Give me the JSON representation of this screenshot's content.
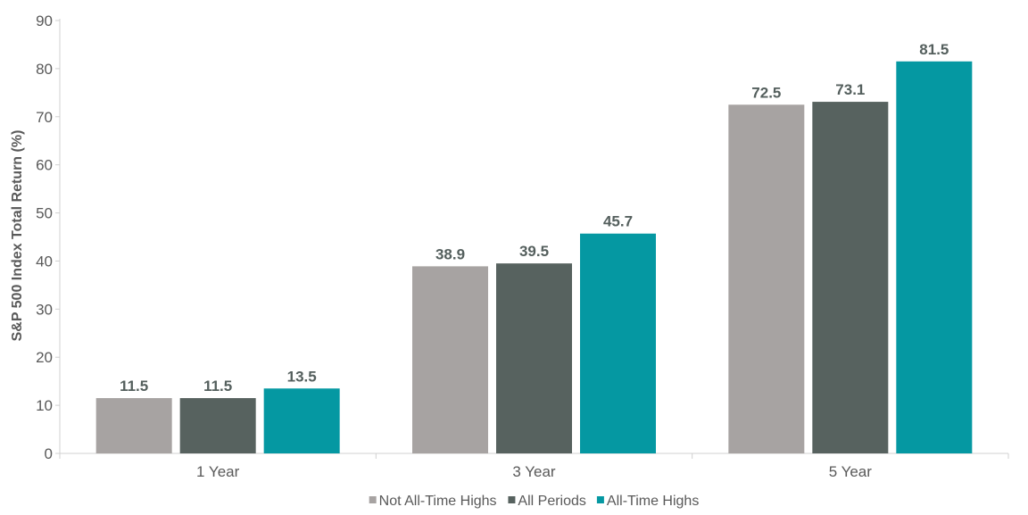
{
  "chart_data": {
    "type": "bar",
    "categories": [
      "1 Year",
      "3 Year",
      "5 Year"
    ],
    "series": [
      {
        "name": "Not All-Time Highs",
        "values": [
          11.5,
          38.9,
          72.5
        ],
        "color": "#a7a3a2"
      },
      {
        "name": "All Periods",
        "values": [
          11.5,
          39.5,
          73.1
        ],
        "color": "#57625f"
      },
      {
        "name": "All-Time Highs",
        "values": [
          13.5,
          45.7,
          81.5
        ],
        "color": "#0598a2"
      }
    ],
    "ylabel": "S&P 500 Index Total Return (%)",
    "ylim": [
      0,
      90
    ],
    "yticks": [
      0,
      10,
      20,
      30,
      40,
      50,
      60,
      70,
      80,
      90
    ],
    "data_labels": true,
    "grid": false,
    "legend_position": "bottom"
  }
}
